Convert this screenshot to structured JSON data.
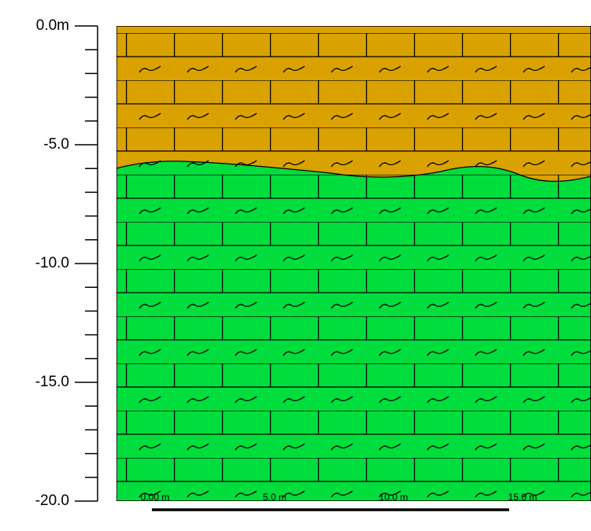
{
  "depth_axis": {
    "labels": [
      "0.0m",
      "-5.0",
      "-10.0",
      "-15.0",
      "-20.0"
    ]
  },
  "scale_bar": {
    "labels": [
      "0.00 m",
      "5.0 m",
      "10.0 m",
      "15.0 m"
    ]
  }
}
